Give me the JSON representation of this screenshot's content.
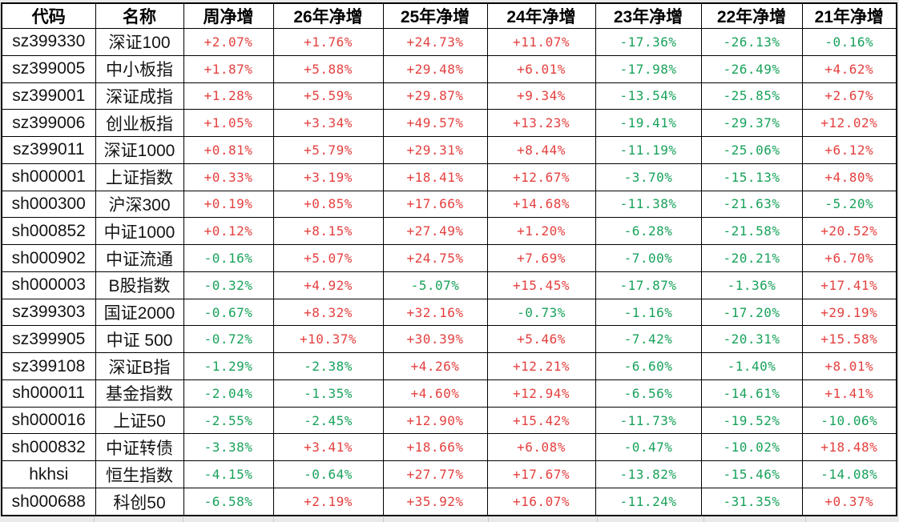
{
  "table": {
    "columns": [
      "代码",
      "名称",
      "周净增",
      "26年净增",
      "25年净增",
      "24年净增",
      "23年净增",
      "22年净增",
      "21年净增"
    ],
    "rows": [
      {
        "code": "sz399330",
        "name": "深证100",
        "values": [
          "+2.07%",
          "+1.76%",
          "+24.73%",
          "+11.07%",
          "-17.36%",
          "-26.13%",
          "-0.16%"
        ]
      },
      {
        "code": "sz399005",
        "name": "中小板指",
        "values": [
          "+1.87%",
          "+5.88%",
          "+29.48%",
          "+6.01%",
          "-17.98%",
          "-26.49%",
          "+4.62%"
        ]
      },
      {
        "code": "sz399001",
        "name": "深证成指",
        "values": [
          "+1.28%",
          "+5.59%",
          "+29.87%",
          "+9.34%",
          "-13.54%",
          "-25.85%",
          "+2.67%"
        ]
      },
      {
        "code": "sz399006",
        "name": "创业板指",
        "values": [
          "+1.05%",
          "+3.34%",
          "+49.57%",
          "+13.23%",
          "-19.41%",
          "-29.37%",
          "+12.02%"
        ]
      },
      {
        "code": "sz399011",
        "name": "深证1000",
        "values": [
          "+0.81%",
          "+5.79%",
          "+29.31%",
          "+8.44%",
          "-11.19%",
          "-25.06%",
          "+6.12%"
        ]
      },
      {
        "code": "sh000001",
        "name": "上证指数",
        "values": [
          "+0.33%",
          "+3.19%",
          "+18.41%",
          "+12.67%",
          "-3.70%",
          "-15.13%",
          "+4.80%"
        ]
      },
      {
        "code": "sh000300",
        "name": "沪深300",
        "values": [
          "+0.19%",
          "+0.85%",
          "+17.66%",
          "+14.68%",
          "-11.38%",
          "-21.63%",
          "-5.20%"
        ]
      },
      {
        "code": "sh000852",
        "name": "中证1000",
        "values": [
          "+0.12%",
          "+8.15%",
          "+27.49%",
          "+1.20%",
          "-6.28%",
          "-21.58%",
          "+20.52%"
        ]
      },
      {
        "code": "sh000902",
        "name": "中证流通",
        "values": [
          "-0.16%",
          "+5.07%",
          "+24.75%",
          "+7.69%",
          "-7.00%",
          "-20.21%",
          "+6.70%"
        ]
      },
      {
        "code": "sh000003",
        "name": "B股指数",
        "values": [
          "-0.32%",
          "+4.92%",
          "-5.07%",
          "+15.45%",
          "-17.87%",
          "-1.36%",
          "+17.41%"
        ]
      },
      {
        "code": "sz399303",
        "name": "国证2000",
        "values": [
          "-0.67%",
          "+8.32%",
          "+32.16%",
          "-0.73%",
          "-1.16%",
          "-17.20%",
          "+29.19%"
        ]
      },
      {
        "code": "sz399905",
        "name": "中证 500",
        "values": [
          "-0.72%",
          "+10.37%",
          "+30.39%",
          "+5.46%",
          "-7.42%",
          "-20.31%",
          "+15.58%"
        ]
      },
      {
        "code": "sz399108",
        "name": "深证B指",
        "values": [
          "-1.29%",
          "-2.38%",
          "+4.26%",
          "+12.21%",
          "-6.60%",
          "-1.40%",
          "+8.01%"
        ]
      },
      {
        "code": "sh000011",
        "name": "基金指数",
        "values": [
          "-2.04%",
          "-1.35%",
          "+4.60%",
          "+12.94%",
          "-6.56%",
          "-14.61%",
          "+1.41%"
        ]
      },
      {
        "code": "sh000016",
        "name": "上证50",
        "values": [
          "-2.55%",
          "-2.45%",
          "+12.90%",
          "+15.42%",
          "-11.73%",
          "-19.52%",
          "-10.06%"
        ]
      },
      {
        "code": "sh000832",
        "name": "中证转债",
        "values": [
          "-3.38%",
          "+3.41%",
          "+18.66%",
          "+6.08%",
          "-0.47%",
          "-10.02%",
          "+18.48%"
        ]
      },
      {
        "code": "hkhsi",
        "name": "恒生指数",
        "values": [
          "-4.15%",
          "-0.64%",
          "+27.77%",
          "+17.67%",
          "-13.82%",
          "-15.46%",
          "-14.08%"
        ]
      },
      {
        "code": "sh000688",
        "name": "科创50",
        "values": [
          "-6.58%",
          "+2.19%",
          "+35.92%",
          "+16.07%",
          "-11.24%",
          "-31.35%",
          "+0.37%"
        ]
      }
    ]
  },
  "colors": {
    "positive": "#e4403f",
    "negative": "#18a25b",
    "border": "#000000",
    "header_text": "#000000",
    "cell_background": "#ffffff",
    "page_background": "#e9e9e9"
  }
}
